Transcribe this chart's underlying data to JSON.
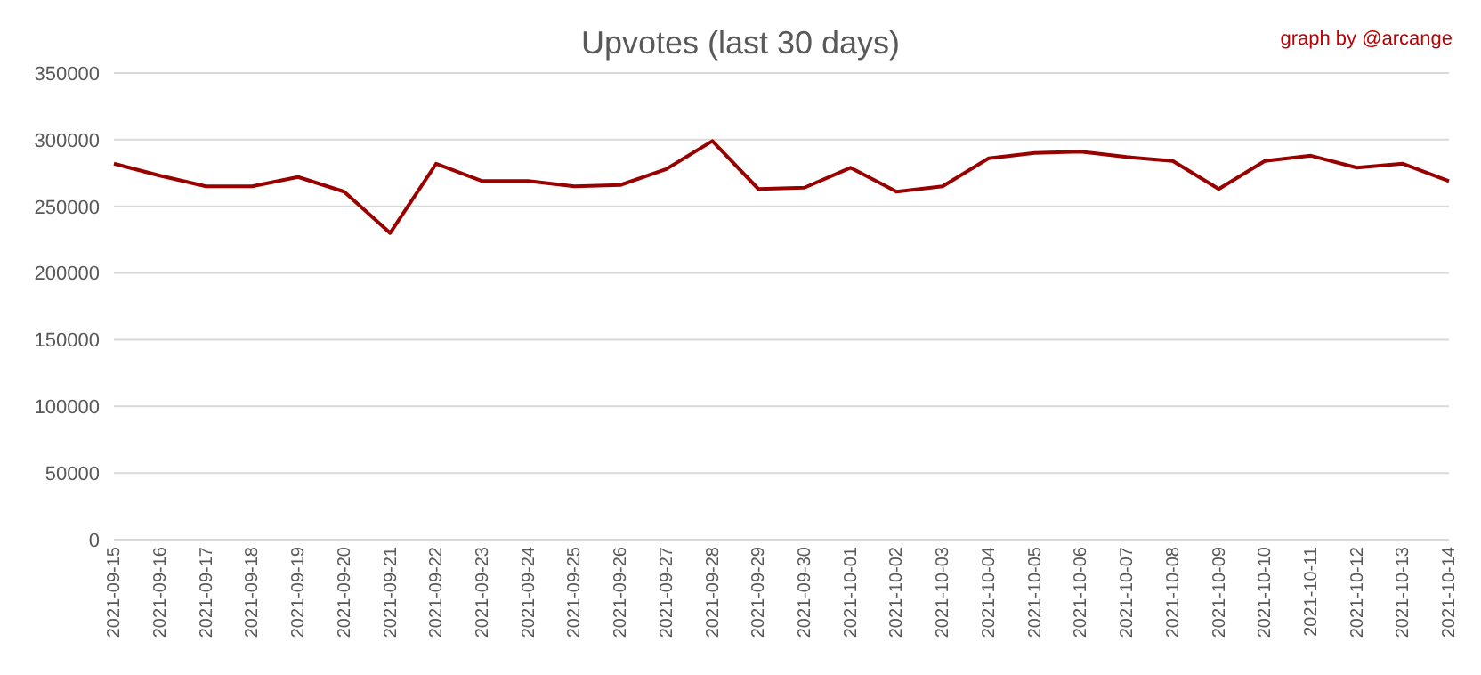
{
  "chart_data": {
    "type": "line",
    "title": "Upvotes (last 30 days)",
    "annotations": [
      "graph by @arcange"
    ],
    "categories": [
      "2021-09-15",
      "2021-09-16",
      "2021-09-17",
      "2021-09-18",
      "2021-09-19",
      "2021-09-20",
      "2021-09-21",
      "2021-09-22",
      "2021-09-23",
      "2021-09-24",
      "2021-09-25",
      "2021-09-26",
      "2021-09-27",
      "2021-09-28",
      "2021-09-29",
      "2021-09-30",
      "2021-10-01",
      "2021-10-02",
      "2021-10-03",
      "2021-10-04",
      "2021-10-05",
      "2021-10-06",
      "2021-10-07",
      "2021-10-08",
      "2021-10-09",
      "2021-10-10",
      "2021-10-11",
      "2021-10-12",
      "2021-10-13",
      "2021-10-14"
    ],
    "series": [
      {
        "color": "#990000",
        "values": [
          282000,
          273000,
          265000,
          265000,
          272000,
          261000,
          230000,
          282000,
          269000,
          269000,
          265000,
          266000,
          278000,
          299000,
          263000,
          264000,
          279000,
          261000,
          265000,
          286000,
          290000,
          291000,
          287000,
          284000,
          263000,
          284000,
          288000,
          279000,
          282000,
          269000
        ]
      }
    ],
    "ylim": [
      0,
      350000
    ],
    "yticks": [
      0,
      50000,
      100000,
      150000,
      200000,
      250000,
      300000,
      350000
    ],
    "grid": "y",
    "legend": false,
    "marker": "none",
    "line_style": "solid"
  }
}
